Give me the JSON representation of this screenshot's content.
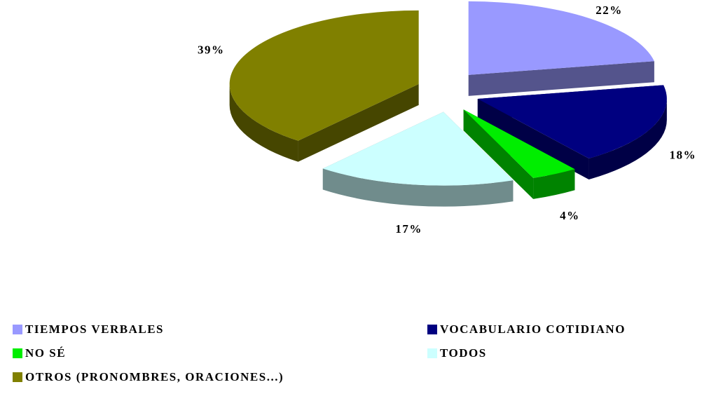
{
  "chart_data": {
    "type": "pie",
    "categories": [
      "TIEMPOS VERBALES",
      "VOCABULARIO COTIDIANO",
      "NO SÉ",
      "TODOS",
      "OTROS (PRONOMBRES, ORACIONES...)"
    ],
    "values": [
      22,
      18,
      4,
      17,
      39
    ],
    "value_labels": [
      "22%",
      "18%",
      "4%",
      "17%",
      "39%"
    ],
    "colors": [
      "#9999ff",
      "#000080",
      "#00ee00",
      "#ccffff",
      "#808000"
    ],
    "legend": "bottom"
  }
}
